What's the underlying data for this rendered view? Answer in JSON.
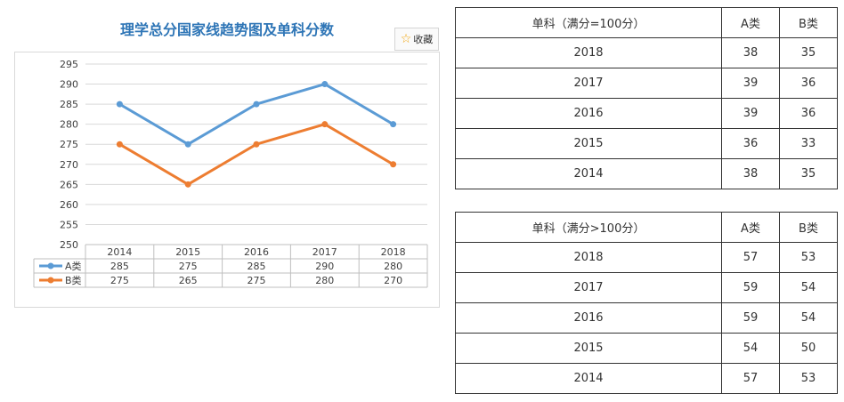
{
  "chart_title": "理学总分国家线趋势图及单科分数",
  "favorite_label": "收藏",
  "chart_data": {
    "type": "line",
    "categories": [
      "2014",
      "2015",
      "2016",
      "2017",
      "2018"
    ],
    "series": [
      {
        "name": "A类",
        "values": [
          285,
          275,
          285,
          290,
          280
        ],
        "color": "#5b9bd5"
      },
      {
        "name": "B类",
        "values": [
          275,
          265,
          275,
          280,
          270
        ],
        "color": "#ed7d31"
      }
    ],
    "ylim": [
      250,
      295
    ],
    "yticks": [
      250,
      255,
      260,
      265,
      270,
      275,
      280,
      285,
      290,
      295
    ],
    "grid": true,
    "data_table": true
  },
  "table1": {
    "headers": [
      "单科（满分=100分）",
      "A类",
      "B类"
    ],
    "rows": [
      [
        "2018",
        "38",
        "35"
      ],
      [
        "2017",
        "39",
        "36"
      ],
      [
        "2016",
        "39",
        "36"
      ],
      [
        "2015",
        "36",
        "33"
      ],
      [
        "2014",
        "38",
        "35"
      ]
    ]
  },
  "table2": {
    "headers": [
      "单科（满分>100分）",
      "A类",
      "B类"
    ],
    "rows": [
      [
        "2018",
        "57",
        "53"
      ],
      [
        "2017",
        "59",
        "54"
      ],
      [
        "2016",
        "59",
        "54"
      ],
      [
        "2015",
        "54",
        "50"
      ],
      [
        "2014",
        "57",
        "53"
      ]
    ]
  }
}
